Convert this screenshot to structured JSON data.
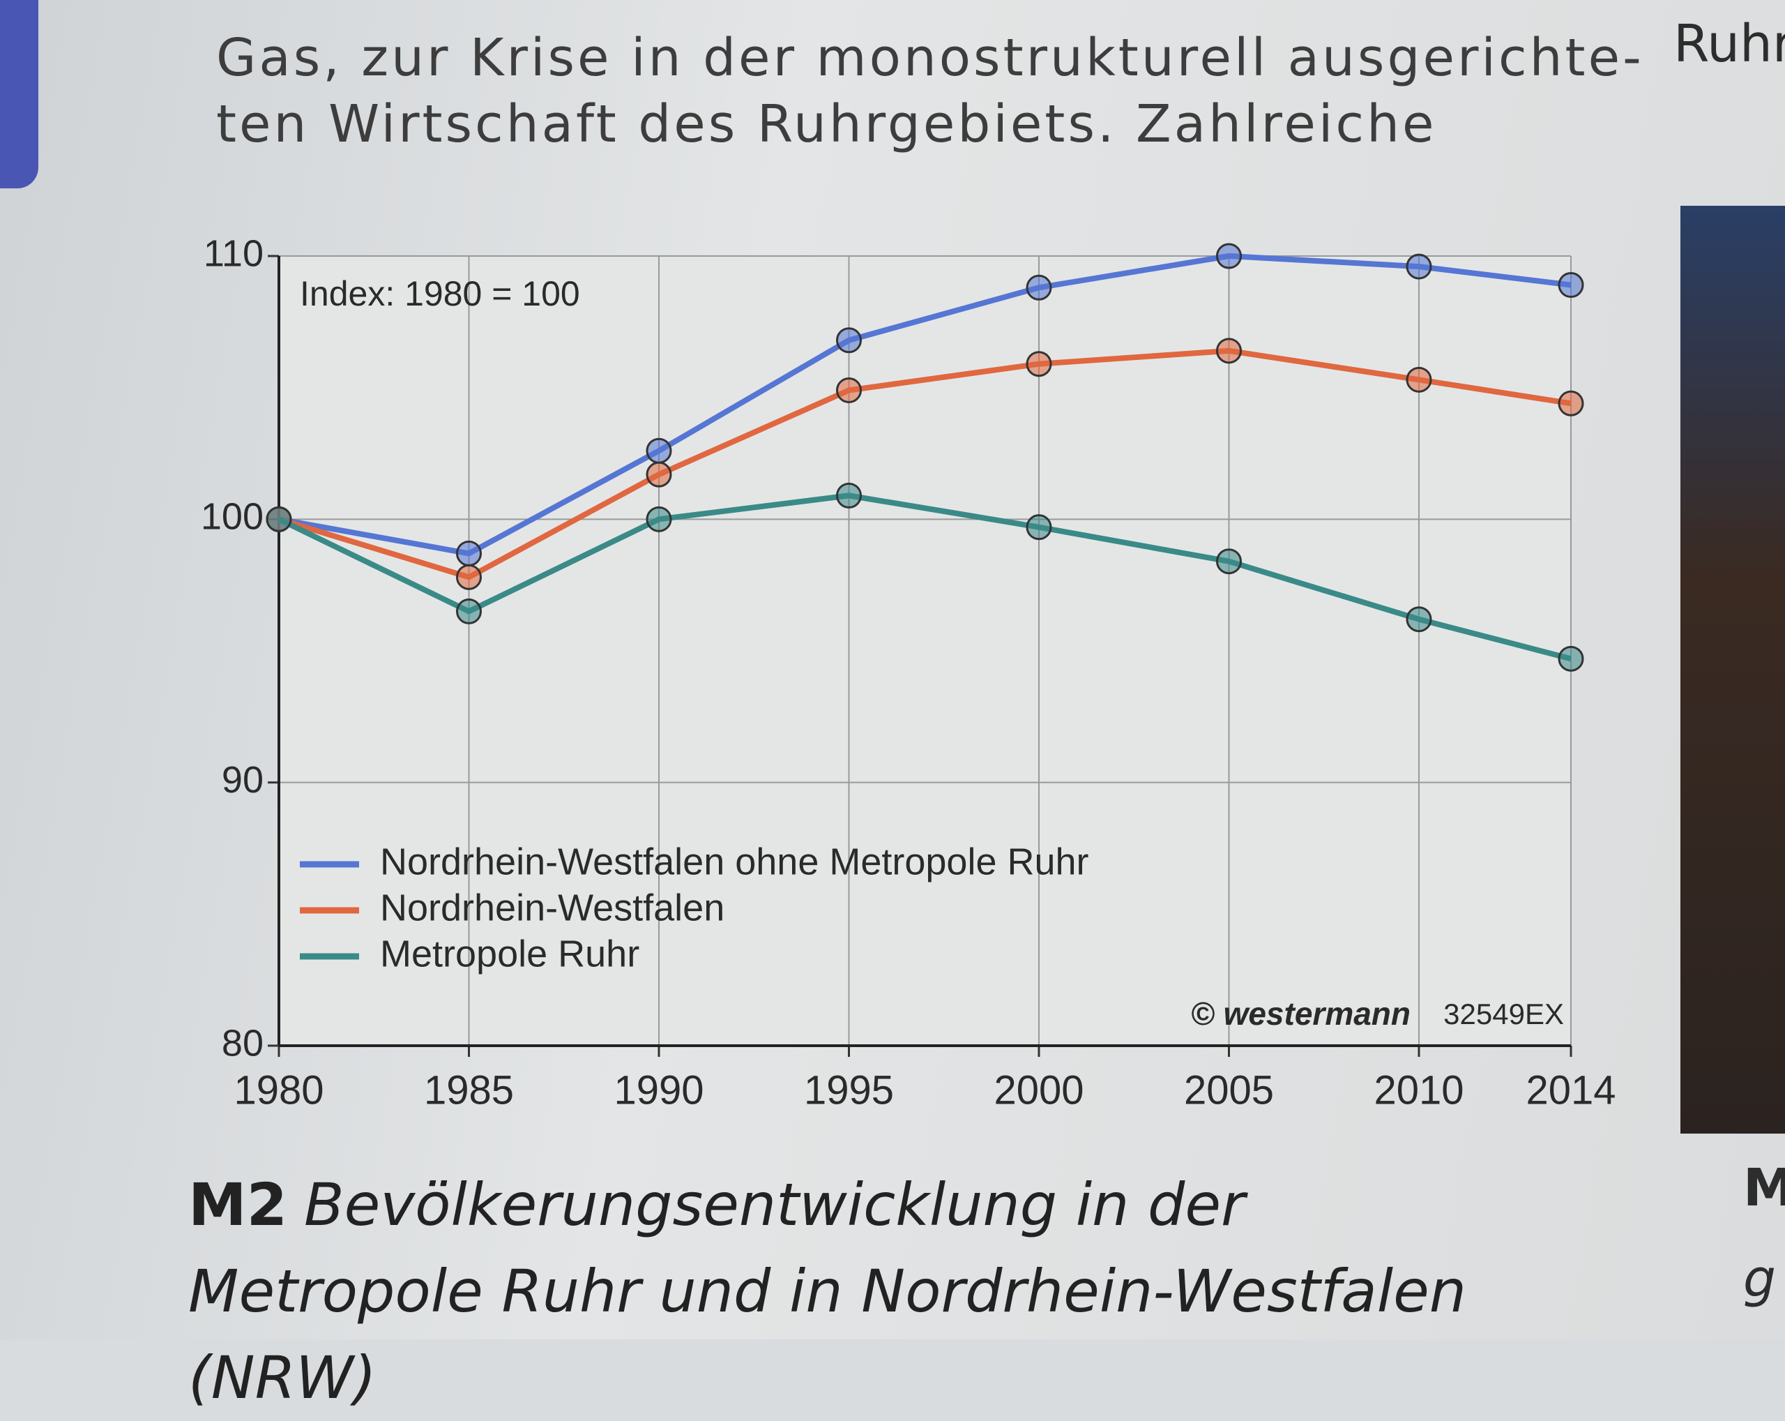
{
  "page_text": [
    "Gas, zur Krise in der monostrukturell ausgerichte-",
    "ten Wirtschaft des Ruhrgebiets. Zahlreiche"
  ],
  "side_text": [
    "Ruhr",
    "M",
    "g"
  ],
  "chart_data": {
    "type": "line",
    "caption_label": "M2",
    "title": "Bevölkerungsentwicklung in der Metropole Ruhr und in Nordrhein-Westfalen (NRW)",
    "annotation": "Index: 1980 = 100",
    "credit": "© westermann",
    "code": "32549EX",
    "x": [
      1980,
      1985,
      1990,
      1995,
      2000,
      2005,
      2010,
      2014
    ],
    "series": [
      {
        "name": "Nordrhein-Westfalen ohne Metropole Ruhr",
        "color": "#5676d4",
        "values": [
          100,
          98.7,
          102.6,
          106.8,
          108.8,
          110.0,
          109.6,
          108.9
        ]
      },
      {
        "name": "Nordrhein-Westfalen",
        "color": "#e0673f",
        "values": [
          100,
          97.8,
          101.7,
          104.9,
          105.9,
          106.4,
          105.3,
          104.4
        ]
      },
      {
        "name": "Metropole Ruhr",
        "color": "#3a8a88",
        "values": [
          100,
          96.5,
          100.0,
          100.9,
          99.7,
          98.4,
          96.2,
          94.7
        ]
      }
    ],
    "xlim": [
      1980,
      2014
    ],
    "xticks": [
      1980,
      1985,
      1990,
      1995,
      2000,
      2005,
      2010,
      2014
    ],
    "ylim": [
      80,
      110
    ],
    "yticks": [
      80,
      90,
      100,
      110
    ],
    "grid": true,
    "legend": "lower left"
  }
}
